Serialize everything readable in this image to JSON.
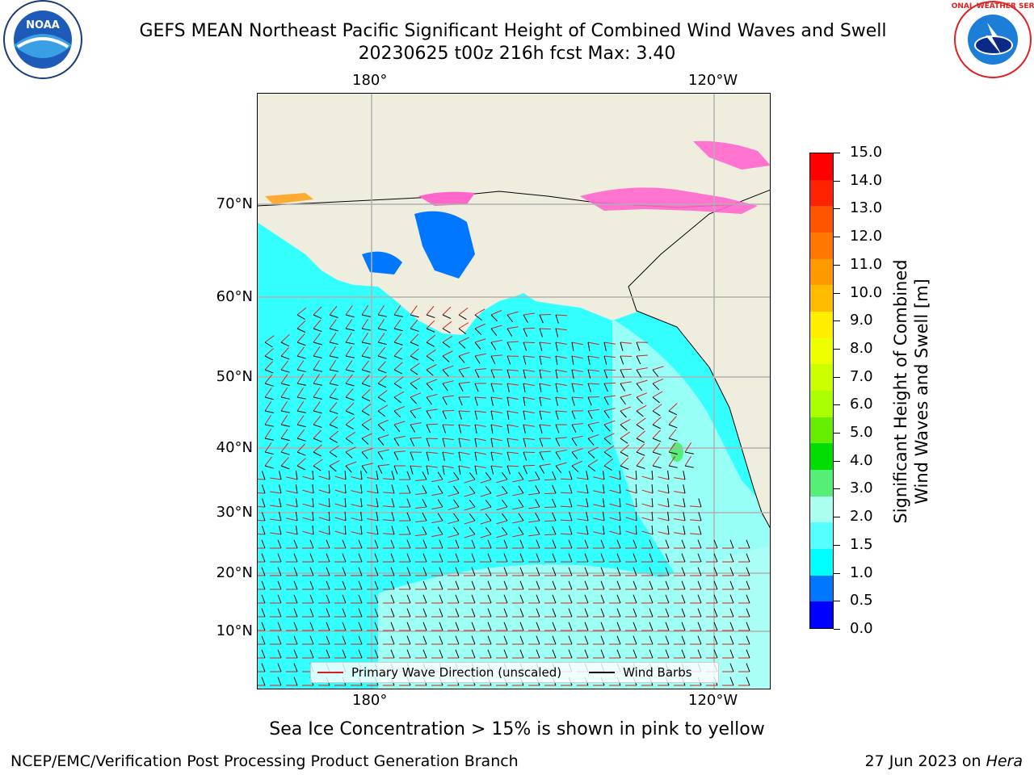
{
  "title_line1": "GEFS MEAN Northeast Pacific Significant Height of Combined Wind Waves and Swell",
  "title_line2": "20230625 t00z 216h fcst   Max: 3.40",
  "top_lon_labels": [
    "180°",
    "120°W"
  ],
  "bottom_lon_labels": [
    "180°",
    "120°W"
  ],
  "lat_labels": [
    "70°N",
    "60°N",
    "50°N",
    "40°N",
    "30°N",
    "20°N",
    "10°N"
  ],
  "legend": {
    "wave_label": "Primary Wave Direction (unscaled)",
    "barb_label": "Wind Barbs",
    "wave_color": "#d62020",
    "barb_color": "#000000"
  },
  "colorbar": {
    "title_line1": "Significant Height of Combined",
    "title_line2": "Wind Waves and Swell [m]",
    "ticks": [
      "15.0",
      "14.0",
      "13.0",
      "12.0",
      "11.0",
      "10.0",
      "9.0",
      "8.0",
      "7.0",
      "6.0",
      "5.0",
      "4.0",
      "3.0",
      "2.0",
      "1.5",
      "1.0",
      "0.5",
      "0.0"
    ],
    "colors_top_to_bottom": [
      "#ff0000",
      "#ff2200",
      "#ff5500",
      "#ff7700",
      "#ff9900",
      "#ffbb00",
      "#ffee00",
      "#eeff00",
      "#ccff00",
      "#aaff00",
      "#66ee00",
      "#00dd00",
      "#55ee77",
      "#aaffee",
      "#55ffff",
      "#00ffff",
      "#0077ff",
      "#0000ff"
    ]
  },
  "map_colors": {
    "land": "#efedde",
    "ocean_main": "#33ffff",
    "ocean_light": "#aafff4",
    "ocean_low": "#0077ff",
    "ice_pink": "#ff66cc",
    "ice_orange": "#ffaa33",
    "grid": "#b0b0b0"
  },
  "note": "Sea Ice Concentration > 15% is shown in pink to yellow",
  "footer_left": "NCEP/EMC/Verification Post Processing Product Generation Branch",
  "footer_right_date": "27 Jun 2023 on ",
  "footer_right_host": "Hera",
  "logo_left": {
    "name": "noaa-logo",
    "text": "NOAA"
  },
  "logo_right": {
    "name": "nws-logo",
    "text": "NATIONAL WEATHER SERVICE"
  }
}
